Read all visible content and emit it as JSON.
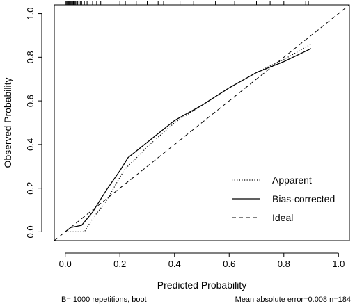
{
  "chart_data": {
    "type": "line",
    "xlabel": "Predicted Probability",
    "ylabel": "Observed Probability",
    "xlim": [
      -0.04,
      1.04
    ],
    "ylim": [
      -0.04,
      1.04
    ],
    "xticks": [
      0.0,
      0.2,
      0.4,
      0.6,
      0.8,
      1.0
    ],
    "xtick_labels": [
      "0.0",
      "0.2",
      "0.4",
      "0.6",
      "0.8",
      "1.0"
    ],
    "yticks": [
      0.0,
      0.2,
      0.4,
      0.6,
      0.8,
      1.0
    ],
    "ytick_labels": [
      "0.0",
      "0.2",
      "0.4",
      "0.6",
      "0.8",
      "1.0"
    ],
    "legend_position": "bottom-right",
    "series": [
      {
        "name": "Apparent",
        "style": "dotted",
        "points": [
          [
            0.0,
            0.0
          ],
          [
            0.02,
            0.0
          ],
          [
            0.07,
            0.0
          ],
          [
            0.1,
            0.06
          ],
          [
            0.15,
            0.14
          ],
          [
            0.2,
            0.25
          ],
          [
            0.22,
            0.29
          ],
          [
            0.27,
            0.35
          ],
          [
            0.3,
            0.39
          ],
          [
            0.4,
            0.5
          ],
          [
            0.5,
            0.58
          ],
          [
            0.6,
            0.66
          ],
          [
            0.7,
            0.73
          ],
          [
            0.8,
            0.79
          ],
          [
            0.9,
            0.86
          ]
        ]
      },
      {
        "name": "Bias-corrected",
        "style": "solid",
        "points": [
          [
            0.0,
            0.0
          ],
          [
            0.02,
            0.02
          ],
          [
            0.06,
            0.03
          ],
          [
            0.1,
            0.09
          ],
          [
            0.15,
            0.19
          ],
          [
            0.2,
            0.28
          ],
          [
            0.23,
            0.34
          ],
          [
            0.3,
            0.41
          ],
          [
            0.4,
            0.51
          ],
          [
            0.5,
            0.58
          ],
          [
            0.6,
            0.66
          ],
          [
            0.7,
            0.73
          ],
          [
            0.8,
            0.78
          ],
          [
            0.9,
            0.84
          ]
        ]
      },
      {
        "name": "Ideal",
        "style": "dashed",
        "points": [
          [
            -0.04,
            -0.04
          ],
          [
            1.04,
            1.04
          ]
        ]
      }
    ],
    "rug_x": [
      0.0,
      0.003,
      0.006,
      0.009,
      0.012,
      0.015,
      0.018,
      0.021,
      0.024,
      0.027,
      0.03,
      0.033,
      0.036,
      0.039,
      0.045,
      0.05,
      0.055,
      0.06,
      0.07,
      0.08,
      0.1,
      0.115,
      0.13,
      0.16,
      0.2,
      0.22,
      0.26,
      0.3,
      0.34,
      0.36,
      0.42,
      0.47,
      0.55,
      0.62,
      0.7,
      0.75,
      0.8,
      0.88,
      0.89
    ],
    "footnotes": {
      "left": "B= 1000 repetitions, boot",
      "right": "Mean absolute error=0.008 n=184"
    }
  }
}
